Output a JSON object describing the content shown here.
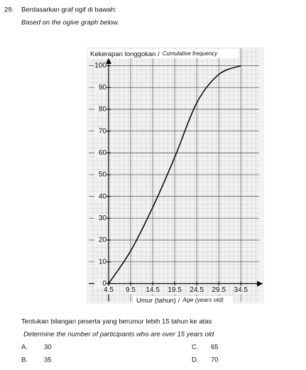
{
  "question": {
    "number": "29.",
    "text": "Berdasarkan graf ogif  di bawah:",
    "translation": "Based on the ogive graph below.",
    "instruction": "Tentukan bilangan peserta yang berumur lebih 15 tahun ke atas",
    "instruction_translation": "Determine the number of participants who are over 15 years old",
    "options": [
      {
        "letter": "A.",
        "text": "30"
      },
      {
        "letter": "B.",
        "text": "35"
      },
      {
        "letter": "C.",
        "text": "65"
      },
      {
        "letter": "D.",
        "text": "70"
      }
    ]
  },
  "chart_data": {
    "type": "line",
    "y_label": "Kekerapan longgokan /",
    "y_label_translation": "Cumulative frequency",
    "x_label": "Umur (tahun) /",
    "x_label_translation": "Age (years old)",
    "x": [
      4.5,
      9.5,
      14.5,
      19.5,
      24.5,
      29.5,
      34.5
    ],
    "series": [
      {
        "color": "#000000",
        "values": [
          0,
          15,
          35,
          58,
          83,
          96,
          100
        ]
      }
    ],
    "xlim": [
      0,
      38
    ],
    "ylim": [
      -8,
      108
    ],
    "xticks": [
      4.5,
      9.5,
      14.5,
      19.5,
      24.5,
      29.5,
      34.5
    ],
    "yticks": [
      0,
      10,
      20,
      30,
      40,
      50,
      60,
      70,
      80,
      90,
      100
    ],
    "grid": true
  }
}
